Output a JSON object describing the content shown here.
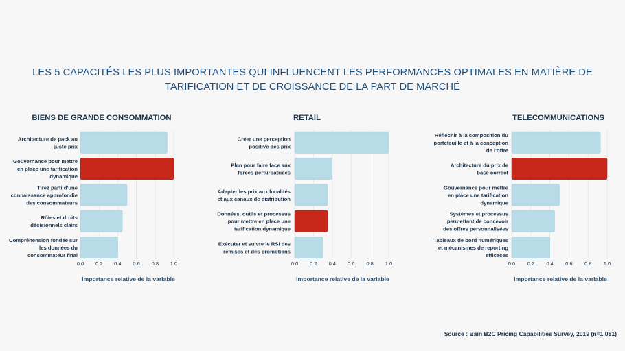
{
  "title": "LES 5 CAPACITÉS LES PLUS IMPORTANTES QUI INFLUENCENT LES PERFORMANCES OPTIMALES EN MATIÈRE DE TARIFICATION ET DE CROISSANCE DE LA PART DE MARCHÉ",
  "title_lines": [
    "LES 5 CAPACITÉS LES PLUS IMPORTANTES QUI INFLUENCENT LES PERFORMANCES OPTIMALES EN MATIÈRE DE",
    "TARIFICATION ET DE CROISSANCE DE LA PART DE MARCHÉ"
  ],
  "source": "Source : Bain B2C Pricing Capabilities Survey, 2019 (n=1.081)",
  "colors": {
    "bar": "#b7dce8",
    "highlight": "#c8281a",
    "title": "#1f4e79",
    "text": "#1c3348"
  },
  "chart_data": [
    {
      "type": "bar",
      "orientation": "horizontal",
      "title": "BIENS DE  GRANDE CONSOMMATION",
      "xlabel": "Importance relative de la variable",
      "xlim": [
        0,
        1.0
      ],
      "xticks": [
        "0.0",
        "0.2",
        "0.4",
        "0.6",
        "0.8",
        "1.0"
      ],
      "categories": [
        [
          "Architecture de pack au",
          "juste prix"
        ],
        [
          "Gouvernance pour mettre",
          "en place une tarification",
          "dynamique"
        ],
        [
          "Tirez parti d'une",
          "connaissance approfondie",
          "des consommateurs"
        ],
        [
          "Rôles et droits",
          "décisionnels clairs"
        ],
        [
          "Compréhension fondée sur",
          "les données du",
          "consommateur final"
        ]
      ],
      "values": [
        0.93,
        1.0,
        0.5,
        0.45,
        0.4
      ],
      "highlight_index": 1,
      "grid": true
    },
    {
      "type": "bar",
      "orientation": "horizontal",
      "title": "RETAIL",
      "xlabel": "Importance relative de la variable",
      "xlim": [
        0,
        1.0
      ],
      "xticks": [
        "0.0",
        "0.2",
        "0.4",
        "0.6",
        "0.8",
        "1.0"
      ],
      "categories": [
        [
          "Créer une perception",
          "positive des prix"
        ],
        [
          "Plan pour faire face aux",
          "forces perturbatrices"
        ],
        [
          "Adapter les prix aux localités",
          "et aux canaux de distribution"
        ],
        [
          "Données, outils et processus",
          "pour mettre en place une",
          "tarification dynamique"
        ],
        [
          "Exécuter et suivre le RSI des",
          "remises et des promotions"
        ]
      ],
      "values": [
        1.0,
        0.4,
        0.35,
        0.35,
        0.3
      ],
      "highlight_index": 3,
      "grid": true
    },
    {
      "type": "bar",
      "orientation": "horizontal",
      "title": "TELECOMMUNICATIONS",
      "xlabel": "Importance relative de la variable",
      "xlim": [
        0,
        1.0
      ],
      "xticks": [
        "0.0",
        "0.2",
        "0.4",
        "0.6",
        "0.8",
        "1.0"
      ],
      "categories": [
        [
          "Réfléchir à la composition du",
          "portefeuille et à la conception",
          "de l'offre"
        ],
        [
          "Architecture du prix de",
          "base correct"
        ],
        [
          "Gouvernance pour mettre",
          "en place une tarification",
          "dynamique"
        ],
        [
          "Systèmes et processus",
          "permettant de concevoir",
          "des offres personnalisées"
        ],
        [
          "Tableaux de bord numériques",
          "et mécanismes de reporting",
          "efficaces"
        ]
      ],
      "values": [
        0.93,
        1.0,
        0.5,
        0.45,
        0.4
      ],
      "highlight_index": 1,
      "grid": true
    }
  ]
}
